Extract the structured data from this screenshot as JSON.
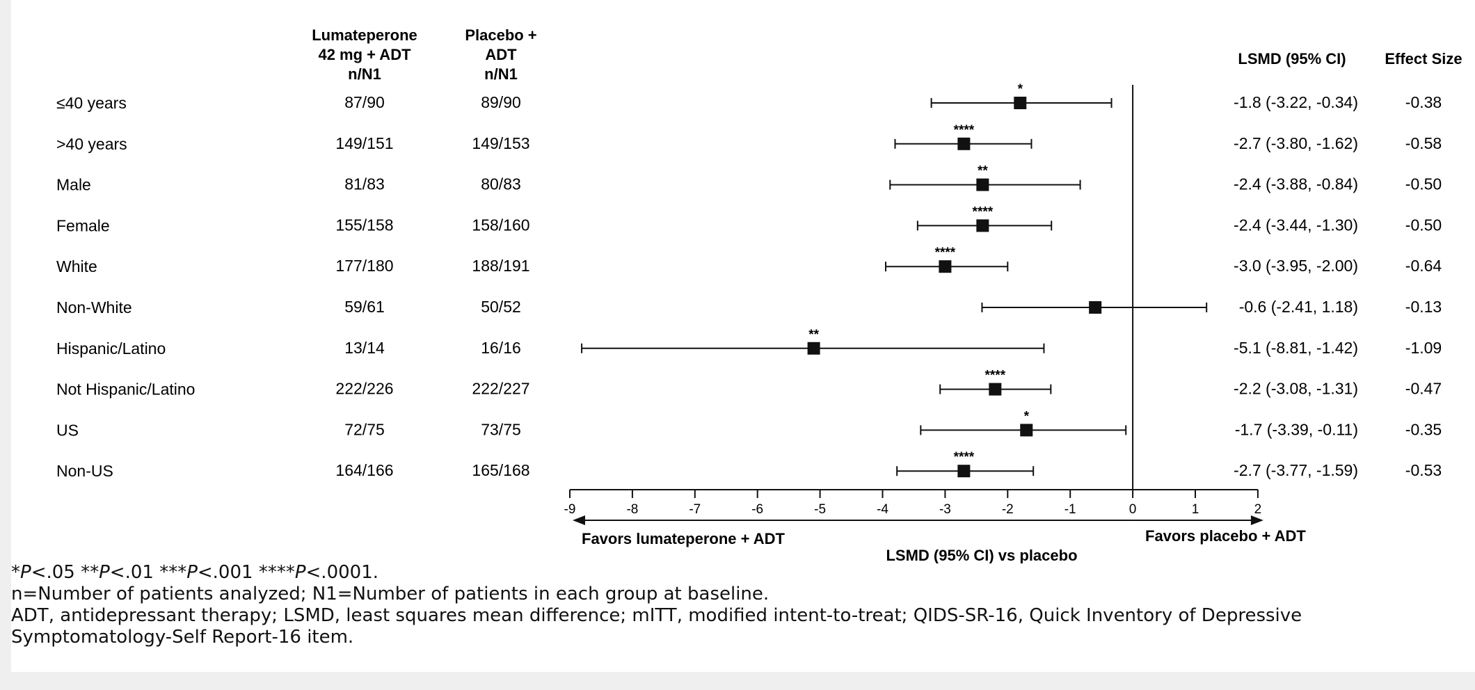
{
  "title": "",
  "headers": {
    "lumateperone": [
      "Lumateperone",
      "42 mg + ADT",
      "n/N1"
    ],
    "placebo": [
      "Placebo +",
      "ADT",
      "n/N1"
    ],
    "lsmd": "LSMD (95% CI)",
    "effect": "Effect Size"
  },
  "chart_data": {
    "type": "forest",
    "xlabel": "LSMD (95% CI) vs placebo",
    "xlim": [
      -9,
      2
    ],
    "xticks": [
      -9,
      -8,
      -7,
      -6,
      -5,
      -4,
      -3,
      -2,
      -1,
      0,
      1,
      2
    ],
    "reference_line": 0,
    "direction_labels": {
      "left": "Favors lumateperone + ADT",
      "right": "Favors placebo + ADT"
    },
    "rows": [
      {
        "subgroup": "≤40 years",
        "lumateperone": "87/90",
        "placebo": "89/90",
        "lsmd": -1.8,
        "ci_low": -3.22,
        "ci_high": -0.34,
        "ci_text": "-1.8 (-3.22, -0.34)",
        "effect_size": "-0.38",
        "sig": "*"
      },
      {
        "subgroup": ">40 years",
        "lumateperone": "149/151",
        "placebo": "149/153",
        "lsmd": -2.7,
        "ci_low": -3.8,
        "ci_high": -1.62,
        "ci_text": "-2.7 (-3.80, -1.62)",
        "effect_size": "-0.58",
        "sig": "****"
      },
      {
        "subgroup": "Male",
        "lumateperone": "81/83",
        "placebo": "80/83",
        "lsmd": -2.4,
        "ci_low": -3.88,
        "ci_high": -0.84,
        "ci_text": "-2.4 (-3.88, -0.84)",
        "effect_size": "-0.50",
        "sig": "**"
      },
      {
        "subgroup": "Female",
        "lumateperone": "155/158",
        "placebo": "158/160",
        "lsmd": -2.4,
        "ci_low": -3.44,
        "ci_high": -1.3,
        "ci_text": "-2.4 (-3.44, -1.30)",
        "effect_size": "-0.50",
        "sig": "****"
      },
      {
        "subgroup": "White",
        "lumateperone": "177/180",
        "placebo": "188/191",
        "lsmd": -3.0,
        "ci_low": -3.95,
        "ci_high": -2.0,
        "ci_text": "-3.0 (-3.95, -2.00)",
        "effect_size": "-0.64",
        "sig": "****"
      },
      {
        "subgroup": "Non-White",
        "lumateperone": "59/61",
        "placebo": "50/52",
        "lsmd": -0.6,
        "ci_low": -2.41,
        "ci_high": 1.18,
        "ci_text": "-0.6 (-2.41, 1.18)",
        "effect_size": "-0.13",
        "sig": ""
      },
      {
        "subgroup": "Hispanic/Latino",
        "lumateperone": "13/14",
        "placebo": "16/16",
        "lsmd": -5.1,
        "ci_low": -8.81,
        "ci_high": -1.42,
        "ci_text": "-5.1 (-8.81, -1.42)",
        "effect_size": "-1.09",
        "sig": "**"
      },
      {
        "subgroup": "Not Hispanic/Latino",
        "lumateperone": "222/226",
        "placebo": "222/227",
        "lsmd": -2.2,
        "ci_low": -3.08,
        "ci_high": -1.31,
        "ci_text": "-2.2 (-3.08, -1.31)",
        "effect_size": "-0.47",
        "sig": "****"
      },
      {
        "subgroup": "US",
        "lumateperone": "72/75",
        "placebo": "73/75",
        "lsmd": -1.7,
        "ci_low": -3.39,
        "ci_high": -0.11,
        "ci_text": "-1.7 (-3.39, -0.11)",
        "effect_size": "-0.35",
        "sig": "*"
      },
      {
        "subgroup": "Non-US",
        "lumateperone": "164/166",
        "placebo": "165/168",
        "lsmd": -2.7,
        "ci_low": -3.77,
        "ci_high": -1.59,
        "ci_text": "-2.7 (-3.77, -1.59)",
        "effect_size": "-0.53",
        "sig": "****"
      }
    ]
  },
  "footnotes": {
    "significance": [
      {
        "stars": "*",
        "p": "P",
        "rest": "<.05"
      },
      {
        "stars": "**",
        "p": "P",
        "rest": "<.01"
      },
      {
        "stars": "***",
        "p": "P",
        "rest": "<.001"
      },
      {
        "stars": "****",
        "p": "P",
        "rest": "<.0001."
      }
    ],
    "line2": "n=Number of patients analyzed; N1=Number of patients in each group at baseline.",
    "line3": "ADT, antidepressant therapy; LSMD, least squares mean difference; mITT, modified intent-to-treat; QIDS-SR-16, Quick Inventory of Depressive",
    "line4": "Symptomatology-Self Report-16 item."
  },
  "colors": {
    "ink": "#111111",
    "page": "#efefef",
    "card": "#ffffff"
  }
}
